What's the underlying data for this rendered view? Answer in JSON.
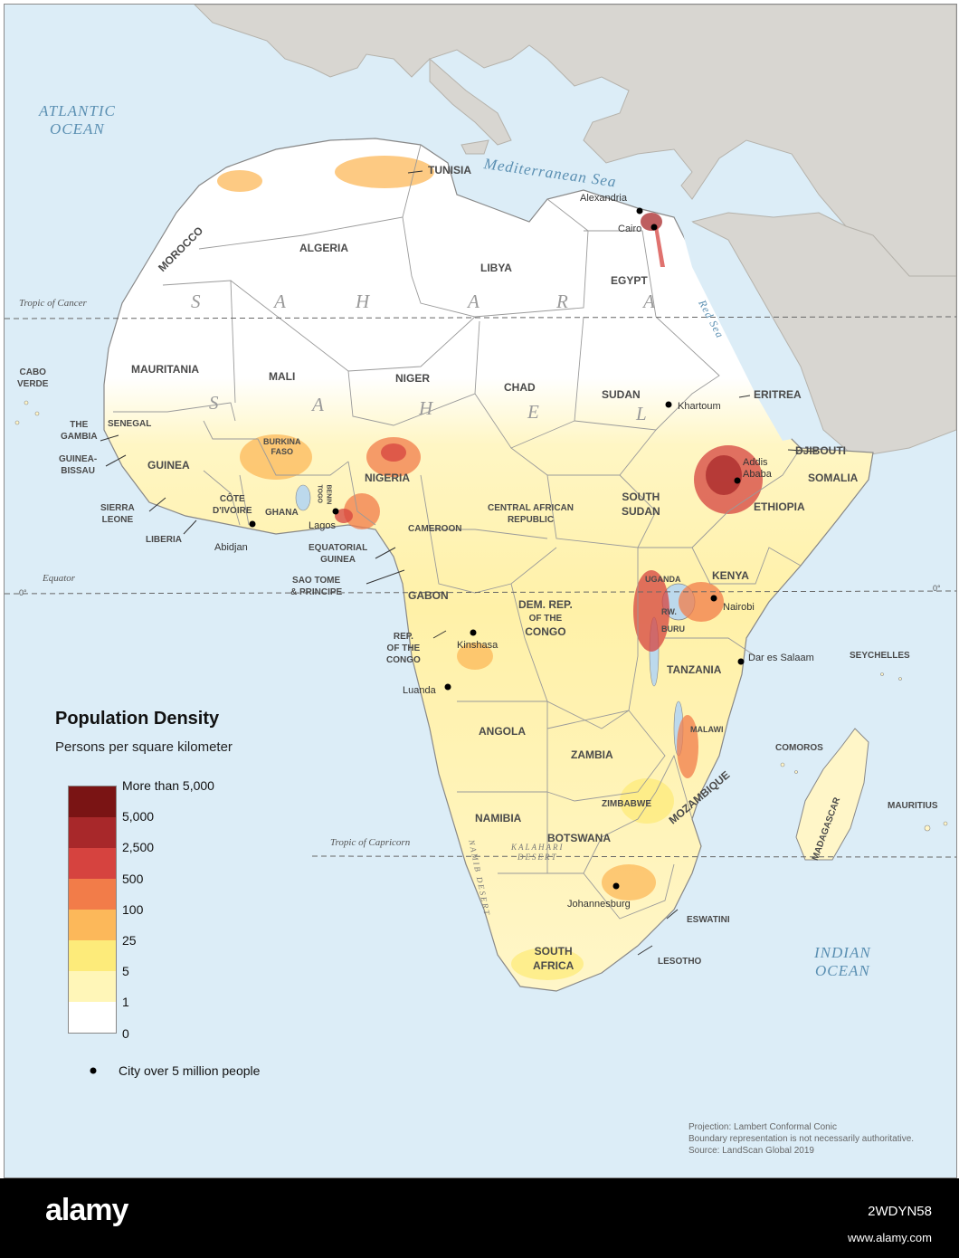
{
  "colors": {
    "water": "#dcedf7",
    "land_other": "#d8d6d1",
    "land_africa": "#ffffff",
    "border": "#9a9a9a",
    "city_dot": "#000000"
  },
  "oceans": {
    "atlantic": [
      "ATLANTIC",
      "OCEAN"
    ],
    "mediterranean": "Mediterranean Sea",
    "red_sea": "Red Sea",
    "indian": [
      "INDIAN",
      "OCEAN"
    ]
  },
  "reference_lines": {
    "tropic_cancer": "Tropic of Cancer",
    "equator": "Equator",
    "equator_deg": "0°",
    "tropic_capricorn": "Tropic of Capricorn"
  },
  "regions": {
    "sahara": [
      "S",
      "A",
      "H",
      "A",
      "R",
      "A"
    ],
    "sahel": [
      "S",
      "A",
      "H",
      "E",
      "L"
    ],
    "kalahari": [
      "KALAHARI",
      "DESERT"
    ],
    "namib": "NAMIB DESERT"
  },
  "countries": {
    "tunisia": "TUNISIA",
    "morocco": "MOROCCO",
    "algeria": "ALGERIA",
    "libya": "LIBYA",
    "egypt": "EGYPT",
    "mauritania": "MAURITANIA",
    "mali": "MALI",
    "niger": "NIGER",
    "chad": "CHAD",
    "sudan": "SUDAN",
    "eritrea": "ERITREA",
    "djibouti": "DJIBOUTI",
    "somalia": "SOMALIA",
    "ethiopia": "ETHIOPIA",
    "cabo_verde": [
      "CABO",
      "VERDE"
    ],
    "the_gambia": [
      "THE",
      "GAMBIA"
    ],
    "senegal": "SENEGAL",
    "guinea_bissau": [
      "GUINEA-",
      "BISSAU"
    ],
    "guinea": "GUINEA",
    "sierra_leone": [
      "SIERRA",
      "LEONE"
    ],
    "liberia": "LIBERIA",
    "cote_divoire": [
      "CÔTE",
      "D'IVOIRE"
    ],
    "ghana": "GHANA",
    "burkina_faso": [
      "BURKINA",
      "FASO"
    ],
    "benin": "BENIN",
    "togo": "TOGO",
    "nigeria": "NIGERIA",
    "cameroon": "CAMEROON",
    "car": [
      "CENTRAL AFRICAN",
      "REPUBLIC"
    ],
    "south_sudan": [
      "SOUTH",
      "SUDAN"
    ],
    "equatorial_guinea": [
      "EQUATORIAL",
      "GUINEA"
    ],
    "sao_tome": [
      "SAO TOME",
      "& PRINCIPE"
    ],
    "gabon": "GABON",
    "rep_congo": [
      "REP.",
      "OF THE",
      "CONGO"
    ],
    "drc": [
      "DEM. REP.",
      "OF THE",
      "CONGO"
    ],
    "uganda": "UGANDA",
    "kenya": "KENYA",
    "rwanda": "RW.",
    "burundi": "BURU",
    "tanzania": "TANZANIA",
    "seychelles": "SEYCHELLES",
    "angola": "ANGOLA",
    "zambia": "ZAMBIA",
    "malawi": "MALAWI",
    "comoros": "COMOROS",
    "mozambique": "MOZAMBIQUE",
    "zimbabwe": "ZIMBABWE",
    "namibia": "NAMIBIA",
    "botswana": "BOTSWANA",
    "madagascar": "MADAGASCAR",
    "mauritius": "MAURITIUS",
    "eswatini": "ESWATINI",
    "lesotho": "LESOTHO",
    "south_africa": [
      "SOUTH",
      "AFRICA"
    ]
  },
  "cities": {
    "alexandria": "Alexandria",
    "cairo": "Cairo",
    "khartoum": "Khartoum",
    "addis_ababa": [
      "Addis",
      "Ababa"
    ],
    "abidjan": "Abidjan",
    "lagos": "Lagos",
    "kinshasa": "Kinshasa",
    "luanda": "Luanda",
    "nairobi": "Nairobi",
    "dar_es_salaam": "Dar es Salaam",
    "johannesburg": "Johannesburg"
  },
  "legend": {
    "title": "Population Density",
    "subtitle": "Persons per square kilometer",
    "classes": [
      {
        "label": "More than 5,000",
        "color": "#7a1414"
      },
      {
        "label": "5,000",
        "color": "#a8282a"
      },
      {
        "label": "2,500",
        "color": "#d6433f"
      },
      {
        "label": "500",
        "color": "#f27c49"
      },
      {
        "label": "100",
        "color": "#fcb85a"
      },
      {
        "label": "25",
        "color": "#fdeb7a"
      },
      {
        "label": "5",
        "color": "#fff6b8"
      },
      {
        "label": "1",
        "color": "#ffffff"
      },
      {
        "label": "0",
        "color": ""
      }
    ],
    "city_symbol": "City over 5 million people"
  },
  "notes": {
    "projection": "Projection: Lambert Conformal Conic",
    "boundary": "Boundary representation is not necessarily authoritative.",
    "source": "Source: LandScan Global 2019"
  },
  "footer": {
    "watermark": "alamy",
    "image_id": "2WDYN58",
    "url": "www.alamy.com"
  }
}
